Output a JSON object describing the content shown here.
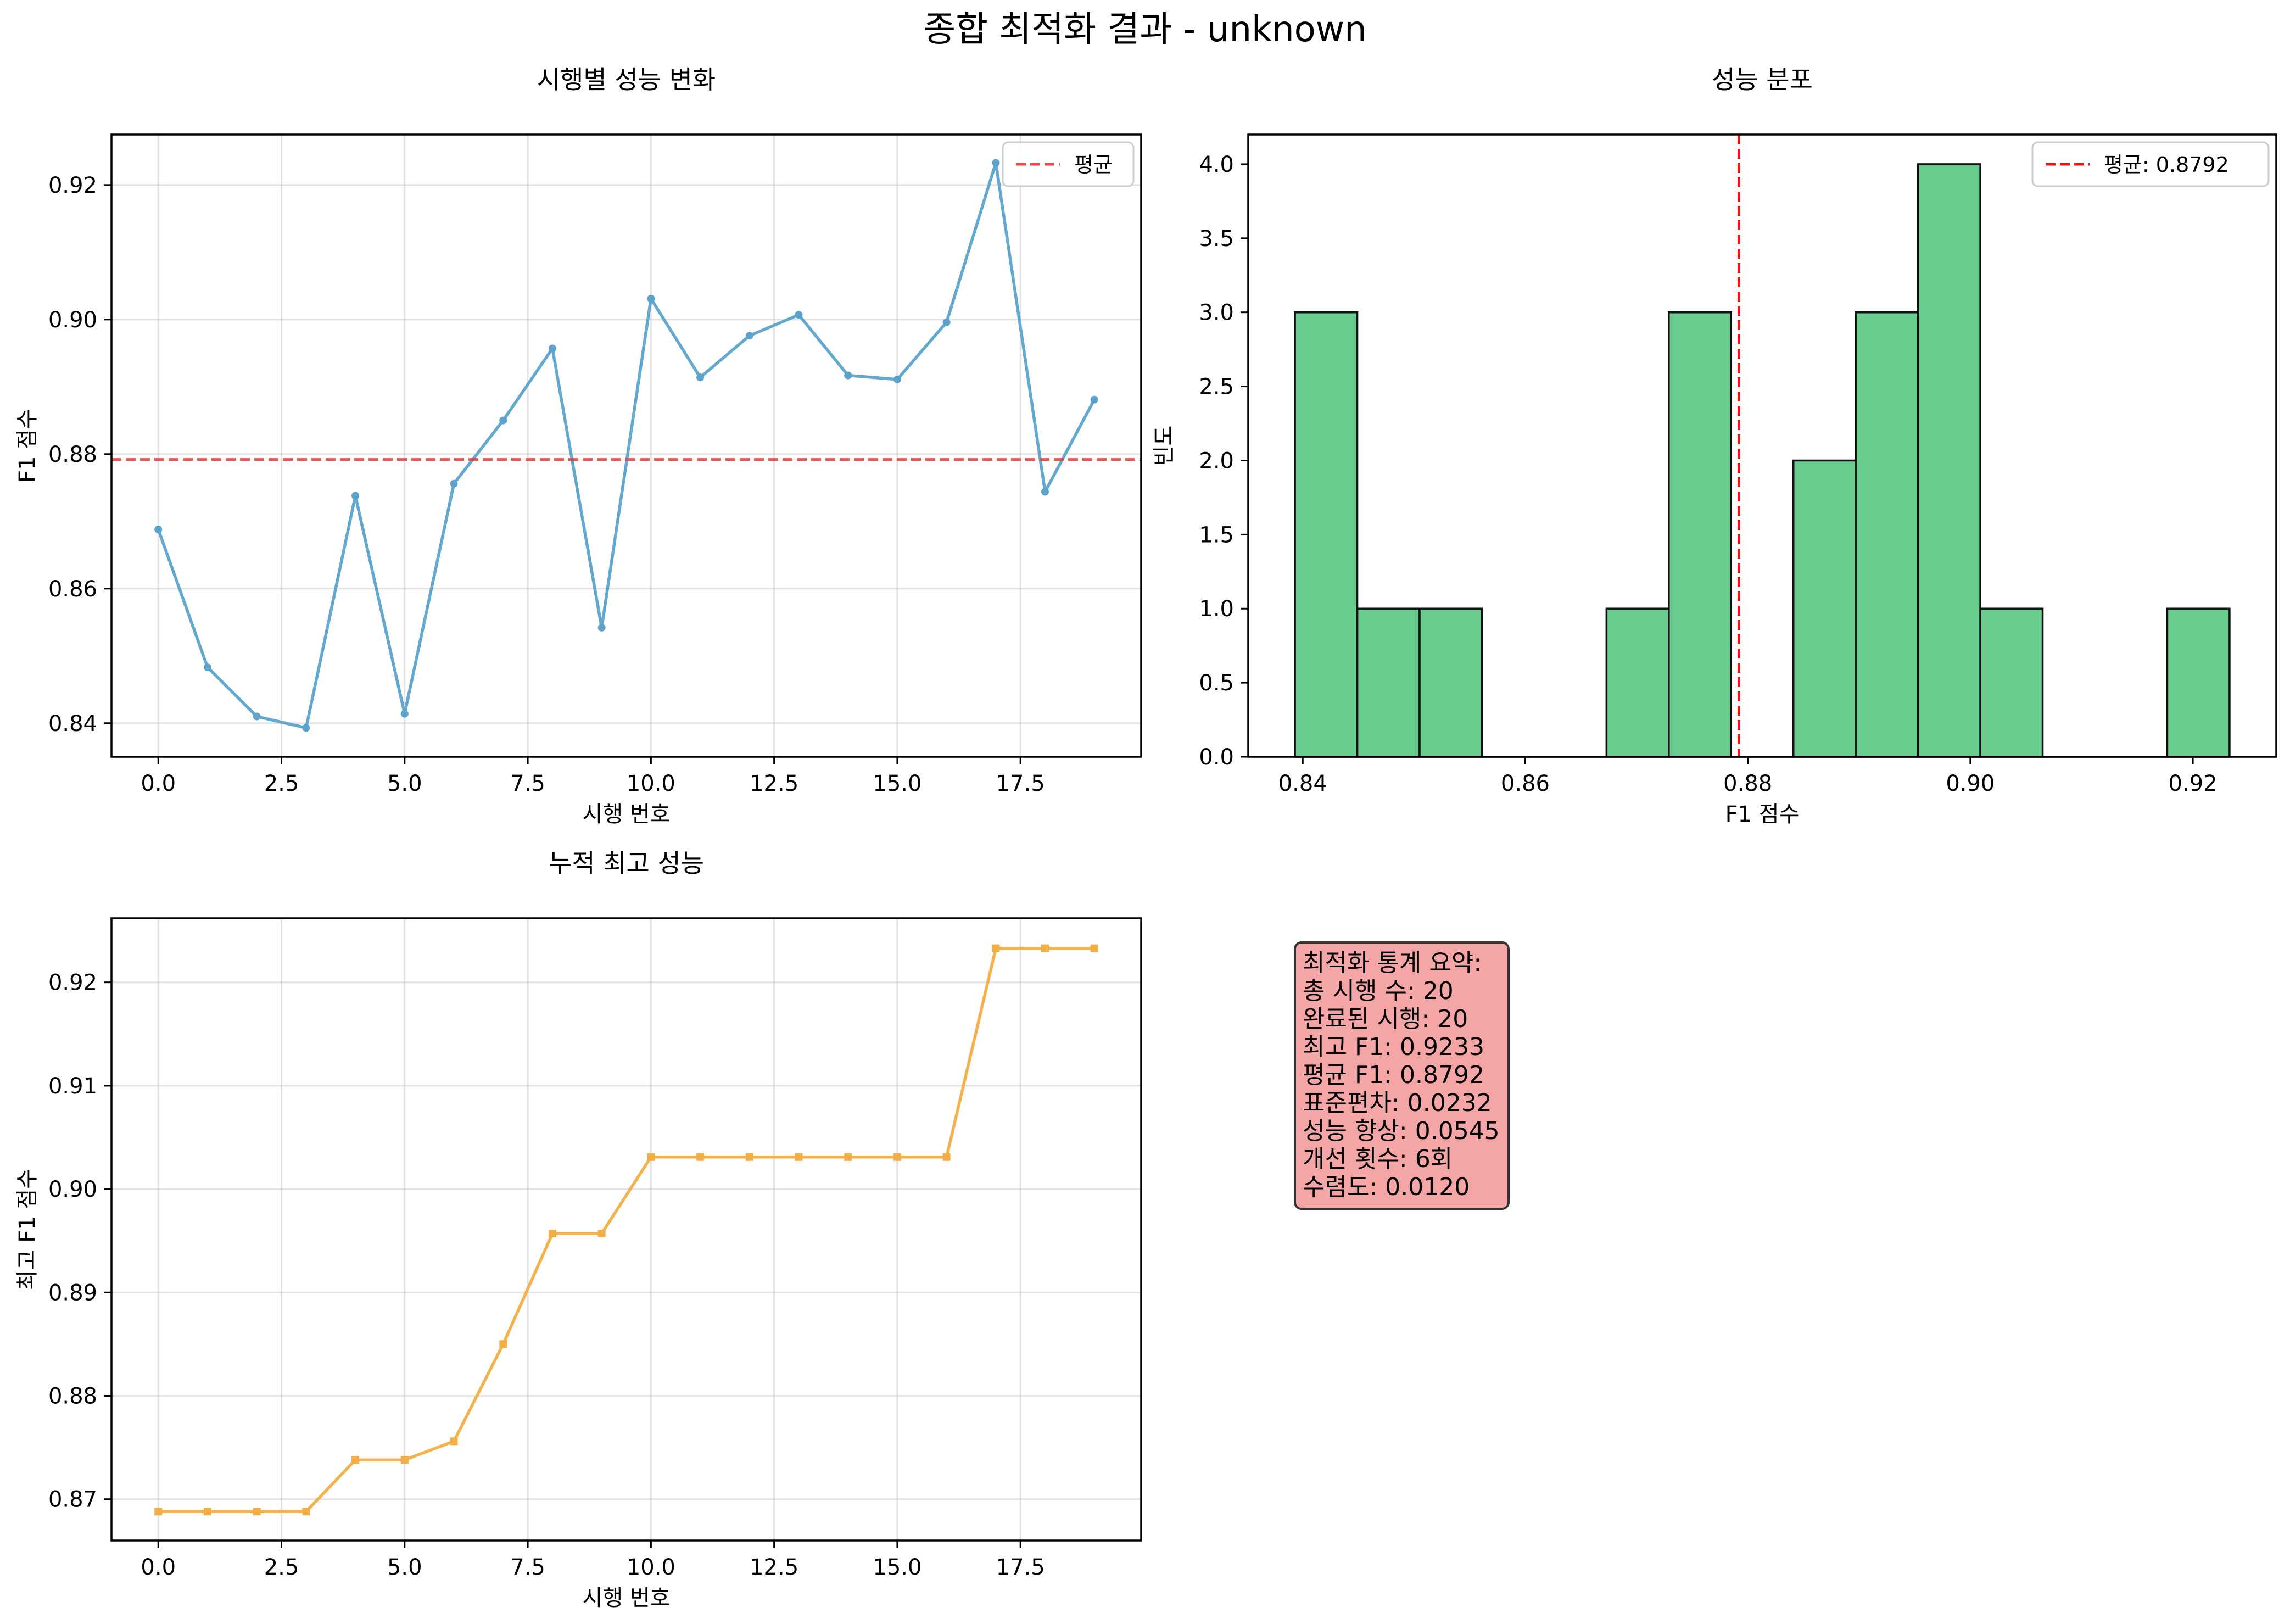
{
  "figure": {
    "suptitle": "종합 최적화 결과 - unknown"
  },
  "colors": {
    "line": "#5ba3cc",
    "mean_line_left": "#ee4444",
    "mean_line_hist": "#ee1111",
    "hist_bar": "#69cb8e",
    "best_line": "#f2ae44",
    "stats_bg": "#f4a6a6"
  },
  "chart_data": [
    {
      "type": "line",
      "title": "시행별 성능 변화",
      "xlabel": "시행 번호",
      "ylabel": "F1 점수",
      "x": [
        0,
        1,
        2,
        3,
        4,
        5,
        6,
        7,
        8,
        9,
        10,
        11,
        12,
        13,
        14,
        15,
        16,
        17,
        18,
        19
      ],
      "series": [
        {
          "values": [
            0.8688,
            0.8483,
            0.841,
            0.8393,
            0.8738,
            0.8414,
            0.8756,
            0.885,
            0.8957,
            0.8542,
            0.9031,
            0.8914,
            0.8976,
            0.9007,
            0.8917,
            0.8911,
            0.8996,
            0.9233,
            0.8744,
            0.8881
          ]
        }
      ],
      "hline": {
        "y": 0.8792,
        "label": "평균"
      },
      "xlim": [
        -0.95,
        19.95
      ],
      "ylim": [
        0.835,
        0.9275
      ],
      "xticks": [
        0.0,
        2.5,
        5.0,
        7.5,
        10.0,
        12.5,
        15.0,
        17.5
      ],
      "xtick_labels": [
        "0.0",
        "2.5",
        "5.0",
        "7.5",
        "10.0",
        "12.5",
        "15.0",
        "17.5"
      ],
      "yticks": [
        0.84,
        0.86,
        0.88,
        0.9,
        0.92
      ],
      "ytick_labels": [
        "0.84",
        "0.86",
        "0.88",
        "0.90",
        "0.92"
      ],
      "grid": true,
      "legend": "top-right"
    },
    {
      "type": "bar",
      "title": "성능 분포",
      "xlabel": "F1 점수",
      "ylabel": "빈도",
      "bin_edges": [
        0.8393,
        0.8449,
        0.8505,
        0.8561,
        0.8617,
        0.8673,
        0.8729,
        0.8785,
        0.8841,
        0.8897,
        0.8953,
        0.9009,
        0.9065,
        0.9121,
        0.9177,
        0.9233
      ],
      "values": [
        3,
        1,
        1,
        0,
        0,
        1,
        3,
        0,
        2,
        3,
        4,
        1,
        0,
        0,
        1
      ],
      "vline": {
        "x": 0.8792,
        "label": "평균: 0.8792"
      },
      "xlim": [
        0.8351,
        0.9275
      ],
      "ylim": [
        0,
        4.2
      ],
      "xticks": [
        0.84,
        0.86,
        0.88,
        0.9,
        0.92
      ],
      "xtick_labels": [
        "0.84",
        "0.86",
        "0.88",
        "0.90",
        "0.92"
      ],
      "yticks": [
        0.0,
        0.5,
        1.0,
        1.5,
        2.0,
        2.5,
        3.0,
        3.5,
        4.0
      ],
      "ytick_labels": [
        "0.0",
        "0.5",
        "1.0",
        "1.5",
        "2.0",
        "2.5",
        "3.0",
        "3.5",
        "4.0"
      ],
      "grid": false,
      "legend": "top-right"
    },
    {
      "type": "line",
      "title": "누적 최고 성능",
      "xlabel": "시행 번호",
      "ylabel": "최고 F1 점수",
      "x": [
        0,
        1,
        2,
        3,
        4,
        5,
        6,
        7,
        8,
        9,
        10,
        11,
        12,
        13,
        14,
        15,
        16,
        17,
        18,
        19
      ],
      "series": [
        {
          "values": [
            0.8688,
            0.8688,
            0.8688,
            0.8688,
            0.8738,
            0.8738,
            0.8756,
            0.885,
            0.8957,
            0.8957,
            0.9031,
            0.9031,
            0.9031,
            0.9031,
            0.9031,
            0.9031,
            0.9031,
            0.9233,
            0.9233,
            0.9233
          ]
        }
      ],
      "xlim": [
        -0.95,
        19.95
      ],
      "ylim": [
        0.866,
        0.9262
      ],
      "xticks": [
        0.0,
        2.5,
        5.0,
        7.5,
        10.0,
        12.5,
        15.0,
        17.5
      ],
      "xtick_labels": [
        "0.0",
        "2.5",
        "5.0",
        "7.5",
        "10.0",
        "12.5",
        "15.0",
        "17.5"
      ],
      "yticks": [
        0.87,
        0.88,
        0.89,
        0.9,
        0.91,
        0.92
      ],
      "ytick_labels": [
        "0.87",
        "0.88",
        "0.89",
        "0.90",
        "0.91",
        "0.92"
      ],
      "grid": true,
      "legend": "none"
    }
  ],
  "stats": {
    "lines": [
      "최적화 통계 요약:",
      "총 시행 수: 20",
      "완료된 시행: 20",
      "최고 F1: 0.9233",
      "평균 F1: 0.8792",
      "표준편차: 0.0232",
      "성능 향상: 0.0545",
      "개선 횟수: 6회",
      "수렴도: 0.0120"
    ]
  }
}
